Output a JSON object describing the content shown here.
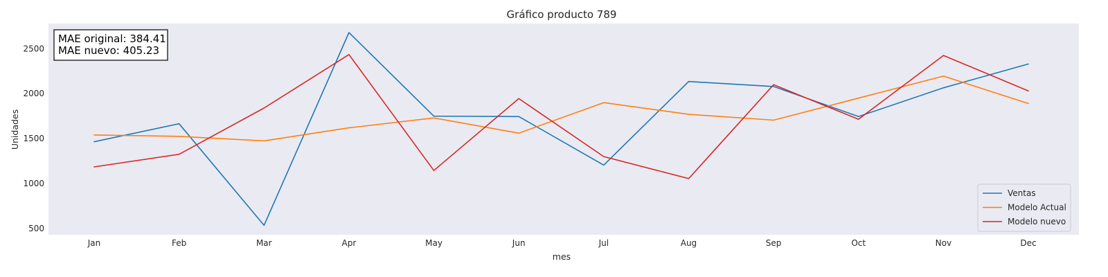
{
  "chart_data": {
    "type": "line",
    "title": "Gráfico producto 789",
    "xlabel": "mes",
    "ylabel": "Unidades",
    "categories": [
      "Jan",
      "Feb",
      "Mar",
      "Apr",
      "May",
      "Jun",
      "Jul",
      "Aug",
      "Sep",
      "Oct",
      "Nov",
      "Dec"
    ],
    "yticks": [
      500,
      1000,
      1500,
      2000,
      2500
    ],
    "ylim": [
      430,
      2780
    ],
    "grid": false,
    "legend_position": "lower-right",
    "series": [
      {
        "name": "Ventas",
        "color": "#1f77b4",
        "values": [
          1465,
          1665,
          535,
          2680,
          1750,
          1745,
          1205,
          2135,
          2080,
          1745,
          2065,
          2330
        ]
      },
      {
        "name": "Modelo Actual",
        "color": "#ff7f0e",
        "values": [
          1540,
          1525,
          1475,
          1620,
          1730,
          1560,
          1900,
          1770,
          1705,
          1950,
          2195,
          1890
        ]
      },
      {
        "name": "Modelo nuevo",
        "color": "#d62728",
        "values": [
          1185,
          1325,
          1840,
          2435,
          1145,
          1945,
          1300,
          1055,
          2100,
          1715,
          2425,
          2030
        ]
      }
    ],
    "annotation": {
      "line1": "MAE original: 384.41",
      "line2": "MAE nuevo: 405.23"
    }
  },
  "colors": {
    "plot_background": "#eaeaf2"
  }
}
